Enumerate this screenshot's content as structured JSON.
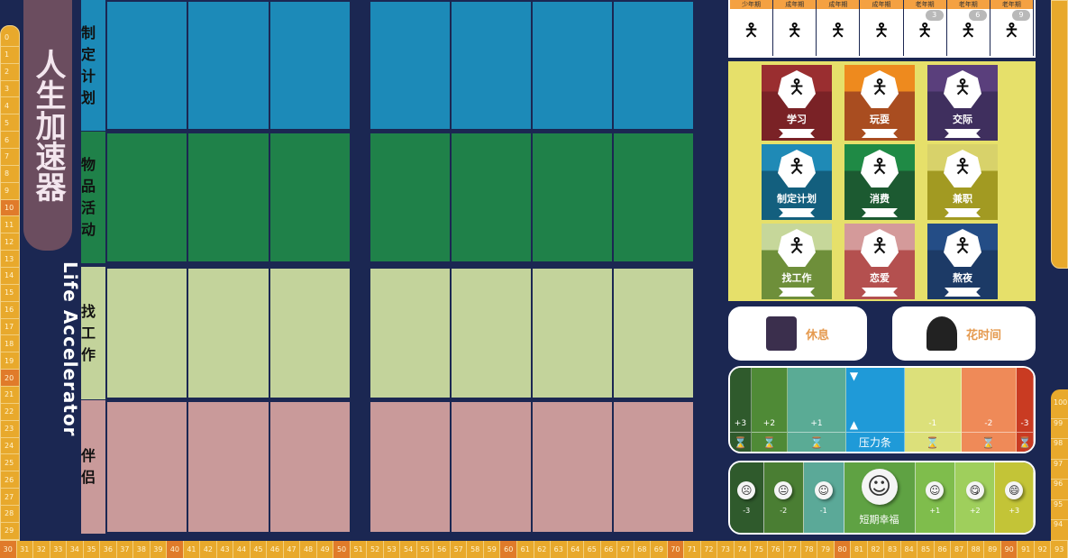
{
  "title": "人生加速器",
  "subtitle": "Life Accelerator",
  "age_track_left": [
    "0",
    "1",
    "2",
    "3",
    "4",
    "5",
    "6",
    "7",
    "8",
    "9",
    "10",
    "11",
    "12",
    "13",
    "14",
    "15",
    "16",
    "17",
    "18",
    "19",
    "20",
    "21",
    "22",
    "23",
    "24",
    "25",
    "26",
    "27",
    "28",
    "29"
  ],
  "age_track_bottom": [
    "30",
    "31",
    "32",
    "33",
    "34",
    "35",
    "36",
    "37",
    "38",
    "39",
    "40",
    "41",
    "42",
    "43",
    "44",
    "45",
    "46",
    "47",
    "48",
    "49",
    "50",
    "51",
    "52",
    "53",
    "54",
    "55",
    "56",
    "57",
    "58",
    "59",
    "60",
    "61",
    "62",
    "63",
    "64",
    "65",
    "66",
    "67",
    "68",
    "69",
    "70",
    "71",
    "72",
    "73",
    "74",
    "75",
    "76",
    "77",
    "78",
    "79",
    "80",
    "81",
    "82",
    "83",
    "84",
    "85",
    "86",
    "87",
    "88",
    "89",
    "90",
    "91",
    "92",
    "93"
  ],
  "age_track_right": [
    "100",
    "99",
    "98",
    "97",
    "96",
    "95",
    "94"
  ],
  "rows": [
    {
      "label": "制定计划",
      "color": "#1c8ab8"
    },
    {
      "label": "物品活动",
      "color": "#1f8149"
    },
    {
      "label": "找工作",
      "color": "#c3d39b"
    },
    {
      "label": "伴侣",
      "color": "#c99a9a"
    }
  ],
  "life_stages": [
    {
      "label": "少年期",
      "icon": "stick-figure-child"
    },
    {
      "label": "成年期",
      "icon": "stick-figure"
    },
    {
      "label": "成年期",
      "icon": "stick-figure"
    },
    {
      "label": "成年期",
      "icon": "stick-figure"
    },
    {
      "label": "老年期",
      "icon": "stick-figure-old",
      "cloud": "3"
    },
    {
      "label": "老年期",
      "icon": "stick-figure-old",
      "cloud": "6"
    },
    {
      "label": "老年期",
      "icon": "stick-figure-old",
      "cloud": "9"
    }
  ],
  "actions": [
    {
      "label": "学习",
      "top": "#9a2e30",
      "bottom": "#7a2226"
    },
    {
      "label": "玩耍",
      "top": "#ee8a1e",
      "bottom": "#a94d20"
    },
    {
      "label": "交际",
      "top": "#5a3f7c",
      "bottom": "#3f2f5e"
    },
    {
      "label": "制定计划",
      "top": "#1f8ab6",
      "bottom": "#135f7e"
    },
    {
      "label": "消费",
      "top": "#1f8a45",
      "bottom": "#1c5a31"
    },
    {
      "label": "兼职",
      "top": "#d8d26a",
      "bottom": "#a29a22"
    },
    {
      "label": "找工作",
      "top": "#c6d79a",
      "bottom": "#6e8f3a"
    },
    {
      "label": "恋爱",
      "top": "#d49a9a",
      "bottom": "#b4504f"
    },
    {
      "label": "熬夜",
      "top": "#244d86",
      "bottom": "#1c3a66"
    }
  ],
  "buttons": {
    "rest": "休息",
    "spend_time": "花时间"
  },
  "stress_bar": {
    "label": "压力条",
    "segments": [
      {
        "value": "+3",
        "color": "#2f5a2c"
      },
      {
        "value": "+2",
        "color": "#4f8a36"
      },
      {
        "value": "+1",
        "color": "#5aab95"
      },
      {
        "value": "",
        "color": "#1f9ad8"
      },
      {
        "value": "-1",
        "color": "#dce07a"
      },
      {
        "value": "-2",
        "color": "#ef8a58"
      },
      {
        "value": "-3",
        "color": "#c93b22"
      }
    ]
  },
  "happiness_bar": {
    "label": "短期幸福",
    "segments": [
      {
        "value": "-3",
        "color": "#2f5a2c",
        "face": "☹"
      },
      {
        "value": "-2",
        "color": "#4a7e33",
        "face": "😐"
      },
      {
        "value": "-1",
        "color": "#5ba998",
        "face": "☺"
      },
      {
        "value": "短期幸福",
        "color": "#5fa243",
        "face": "☺"
      },
      {
        "value": "+1",
        "color": "#7fbd4c",
        "face": "☺"
      },
      {
        "value": "+2",
        "color": "#9fcf5c",
        "face": "😋"
      },
      {
        "value": "+3",
        "color": "#c3c437",
        "face": "😄"
      }
    ]
  }
}
